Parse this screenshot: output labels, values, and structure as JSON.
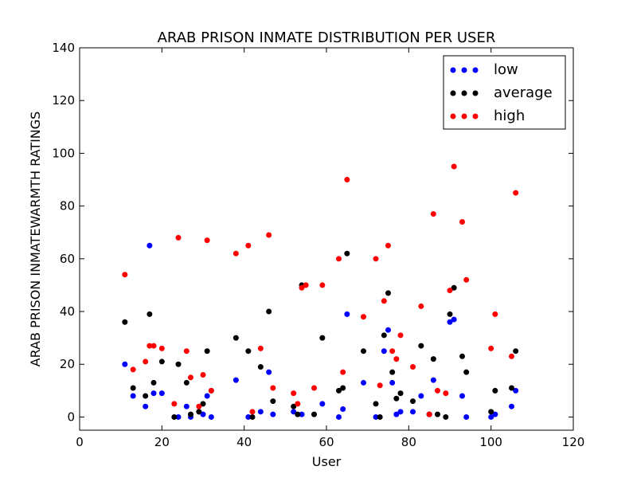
{
  "chart_data": {
    "type": "scatter",
    "title": "ARAB PRISON INMATE DISTRIBUTION PER USER",
    "xlabel": "User",
    "ylabel": "ARAB PRISON INMATEWARMTH RATINGS",
    "xlim": [
      0,
      120
    ],
    "ylim": [
      -5,
      140
    ],
    "xticks": [
      "0",
      "20",
      "40",
      "60",
      "80",
      "100",
      "120"
    ],
    "yticks": [
      "0",
      "20",
      "40",
      "60",
      "80",
      "100",
      "120",
      "140"
    ],
    "grid": false,
    "legend_position": "top-right",
    "series": [
      {
        "name": "low",
        "color": "#0000ff",
        "points": [
          [
            11,
            20
          ],
          [
            13,
            8
          ],
          [
            16,
            4
          ],
          [
            17,
            65
          ],
          [
            18,
            9
          ],
          [
            20,
            9
          ],
          [
            24,
            0
          ],
          [
            26,
            4
          ],
          [
            27,
            0
          ],
          [
            29,
            2
          ],
          [
            30,
            1
          ],
          [
            31,
            8
          ],
          [
            32,
            0
          ],
          [
            38,
            14
          ],
          [
            41,
            0
          ],
          [
            44,
            2
          ],
          [
            46,
            17
          ],
          [
            47,
            1
          ],
          [
            52,
            2
          ],
          [
            54,
            1
          ],
          [
            59,
            5
          ],
          [
            63,
            0
          ],
          [
            64,
            3
          ],
          [
            65,
            39
          ],
          [
            69,
            13
          ],
          [
            72,
            0
          ],
          [
            74,
            25
          ],
          [
            75,
            33
          ],
          [
            76,
            13
          ],
          [
            77,
            1
          ],
          [
            78,
            2
          ],
          [
            81,
            2
          ],
          [
            83,
            8
          ],
          [
            85,
            1
          ],
          [
            86,
            14
          ],
          [
            90,
            36
          ],
          [
            91,
            37
          ],
          [
            93,
            8
          ],
          [
            94,
            0
          ],
          [
            100,
            0
          ],
          [
            101,
            1
          ],
          [
            105,
            4
          ],
          [
            106,
            10
          ]
        ]
      },
      {
        "name": "average",
        "color": "#000000",
        "points": [
          [
            11,
            36
          ],
          [
            13,
            11
          ],
          [
            16,
            8
          ],
          [
            17,
            39
          ],
          [
            18,
            13
          ],
          [
            20,
            21
          ],
          [
            23,
            0
          ],
          [
            24,
            20
          ],
          [
            26,
            13
          ],
          [
            27,
            1
          ],
          [
            29,
            2
          ],
          [
            30,
            5
          ],
          [
            31,
            25
          ],
          [
            32,
            10
          ],
          [
            38,
            30
          ],
          [
            41,
            25
          ],
          [
            42,
            0
          ],
          [
            44,
            19
          ],
          [
            46,
            40
          ],
          [
            47,
            6
          ],
          [
            52,
            4
          ],
          [
            53,
            1
          ],
          [
            54,
            50
          ],
          [
            57,
            1
          ],
          [
            59,
            30
          ],
          [
            63,
            10
          ],
          [
            64,
            11
          ],
          [
            65,
            62
          ],
          [
            69,
            25
          ],
          [
            72,
            5
          ],
          [
            73,
            0
          ],
          [
            74,
            31
          ],
          [
            75,
            47
          ],
          [
            76,
            17
          ],
          [
            77,
            7
          ],
          [
            78,
            9
          ],
          [
            81,
            6
          ],
          [
            83,
            27
          ],
          [
            85,
            1
          ],
          [
            86,
            22
          ],
          [
            87,
            1
          ],
          [
            89,
            0
          ],
          [
            90,
            39
          ],
          [
            91,
            49
          ],
          [
            93,
            23
          ],
          [
            94,
            17
          ],
          [
            100,
            2
          ],
          [
            101,
            10
          ],
          [
            105,
            11
          ],
          [
            106,
            25
          ]
        ]
      },
      {
        "name": "high",
        "color": "#ff0000",
        "points": [
          [
            11,
            54
          ],
          [
            13,
            18
          ],
          [
            16,
            21
          ],
          [
            17,
            27
          ],
          [
            18,
            27
          ],
          [
            20,
            26
          ],
          [
            23,
            5
          ],
          [
            24,
            68
          ],
          [
            26,
            25
          ],
          [
            27,
            15
          ],
          [
            29,
            4
          ],
          [
            30,
            16
          ],
          [
            31,
            67
          ],
          [
            32,
            10
          ],
          [
            38,
            62
          ],
          [
            41,
            65
          ],
          [
            42,
            2
          ],
          [
            44,
            26
          ],
          [
            46,
            69
          ],
          [
            47,
            11
          ],
          [
            52,
            9
          ],
          [
            53,
            5
          ],
          [
            54,
            49
          ],
          [
            55,
            50
          ],
          [
            57,
            11
          ],
          [
            59,
            50
          ],
          [
            63,
            60
          ],
          [
            64,
            17
          ],
          [
            65,
            90
          ],
          [
            69,
            38
          ],
          [
            72,
            60
          ],
          [
            73,
            12
          ],
          [
            74,
            44
          ],
          [
            75,
            65
          ],
          [
            76,
            25
          ],
          [
            77,
            22
          ],
          [
            78,
            31
          ],
          [
            81,
            19
          ],
          [
            83,
            42
          ],
          [
            85,
            1
          ],
          [
            86,
            77
          ],
          [
            87,
            10
          ],
          [
            89,
            9
          ],
          [
            90,
            48
          ],
          [
            91,
            95
          ],
          [
            93,
            74
          ],
          [
            94,
            52
          ],
          [
            100,
            26
          ],
          [
            101,
            39
          ],
          [
            105,
            23
          ],
          [
            106,
            85
          ]
        ]
      }
    ]
  }
}
